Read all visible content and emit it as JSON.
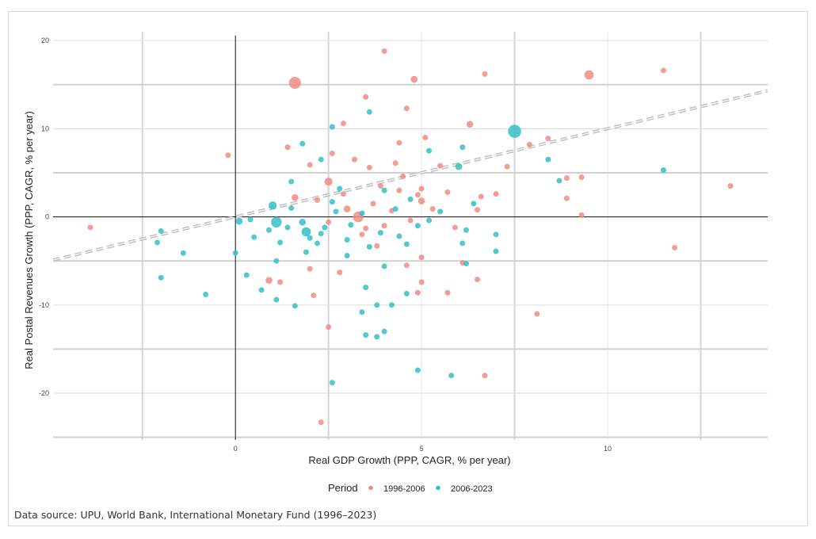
{
  "caption": "Data source: UPU, World Bank, International Monetary Fund (1996–2023)",
  "chart_data": {
    "type": "scatter",
    "title": "",
    "xlabel": "Real GDP Growth (PPP, CAGR, % per year)",
    "ylabel": "Real Postal Revenues Growth (PPP, CAGR, % per year)",
    "xlim": [
      -4.9,
      14.3
    ],
    "ylim": [
      -25.3,
      21.0
    ],
    "x_ticks": [
      0,
      5,
      10
    ],
    "y_ticks": [
      -20,
      -10,
      0,
      10,
      20
    ],
    "grid": true,
    "legend": {
      "title": "Period",
      "position": "bottom"
    },
    "reference_line": {
      "style": "dashed",
      "slope": 1,
      "intercept": 0
    },
    "series": [
      {
        "name": "1996-2006",
        "color": "#F08C84",
        "points": [
          {
            "x": -3.9,
            "y": -1.2,
            "s": 3
          },
          {
            "x": -0.2,
            "y": 7.0,
            "s": 3
          },
          {
            "x": 1.6,
            "y": 15.2,
            "s": 8
          },
          {
            "x": 4.0,
            "y": 18.8,
            "s": 3
          },
          {
            "x": 4.8,
            "y": 15.6,
            "s": 4
          },
          {
            "x": 6.7,
            "y": 16.2,
            "s": 3
          },
          {
            "x": 9.5,
            "y": 16.1,
            "s": 6
          },
          {
            "x": 11.5,
            "y": 16.6,
            "s": 3
          },
          {
            "x": 3.5,
            "y": 13.6,
            "s": 3
          },
          {
            "x": 4.6,
            "y": 12.3,
            "s": 3
          },
          {
            "x": 2.9,
            "y": 10.6,
            "s": 3
          },
          {
            "x": 6.3,
            "y": 10.5,
            "s": 4
          },
          {
            "x": 5.1,
            "y": 9.0,
            "s": 3
          },
          {
            "x": 8.4,
            "y": 8.9,
            "s": 3
          },
          {
            "x": 1.4,
            "y": 7.9,
            "s": 3
          },
          {
            "x": 2.6,
            "y": 7.2,
            "s": 3
          },
          {
            "x": 4.4,
            "y": 8.4,
            "s": 3
          },
          {
            "x": 3.2,
            "y": 6.5,
            "s": 3
          },
          {
            "x": 7.3,
            "y": 5.7,
            "s": 3
          },
          {
            "x": 8.9,
            "y": 4.4,
            "s": 3
          },
          {
            "x": 9.3,
            "y": 4.5,
            "s": 3
          },
          {
            "x": 13.3,
            "y": 3.5,
            "s": 3
          },
          {
            "x": 2.5,
            "y": 4.0,
            "s": 5
          },
          {
            "x": 3.9,
            "y": 3.5,
            "s": 3
          },
          {
            "x": 4.5,
            "y": 4.6,
            "s": 3
          },
          {
            "x": 5.0,
            "y": 3.2,
            "s": 3
          },
          {
            "x": 5.7,
            "y": 2.8,
            "s": 3
          },
          {
            "x": 6.6,
            "y": 2.3,
            "s": 3
          },
          {
            "x": 7.0,
            "y": 2.6,
            "s": 3
          },
          {
            "x": 8.9,
            "y": 2.1,
            "s": 3
          },
          {
            "x": 1.6,
            "y": 2.2,
            "s": 4
          },
          {
            "x": 2.2,
            "y": 1.9,
            "s": 3
          },
          {
            "x": 3.0,
            "y": 0.9,
            "s": 4
          },
          {
            "x": 3.7,
            "y": 1.5,
            "s": 3
          },
          {
            "x": 4.2,
            "y": 0.7,
            "s": 3
          },
          {
            "x": 5.0,
            "y": 1.8,
            "s": 4
          },
          {
            "x": 5.3,
            "y": 0.9,
            "s": 3
          },
          {
            "x": 6.5,
            "y": 0.8,
            "s": 3
          },
          {
            "x": 9.3,
            "y": 0.2,
            "s": 3
          },
          {
            "x": 3.3,
            "y": 0.0,
            "s": 7
          },
          {
            "x": 2.5,
            "y": -0.6,
            "s": 3
          },
          {
            "x": 4.0,
            "y": -1.0,
            "s": 3
          },
          {
            "x": 4.7,
            "y": -0.4,
            "s": 3
          },
          {
            "x": 5.9,
            "y": -1.2,
            "s": 3
          },
          {
            "x": 3.4,
            "y": -2.0,
            "s": 3
          },
          {
            "x": 3.8,
            "y": -3.3,
            "s": 3
          },
          {
            "x": 5.0,
            "y": -4.6,
            "s": 3
          },
          {
            "x": 6.1,
            "y": -5.2,
            "s": 3
          },
          {
            "x": 11.8,
            "y": -3.5,
            "s": 3
          },
          {
            "x": 2.0,
            "y": -5.9,
            "s": 3
          },
          {
            "x": 2.8,
            "y": -6.3,
            "s": 3
          },
          {
            "x": 4.6,
            "y": -5.5,
            "s": 3
          },
          {
            "x": 0.9,
            "y": -7.2,
            "s": 4
          },
          {
            "x": 1.2,
            "y": -7.4,
            "s": 3
          },
          {
            "x": 5.0,
            "y": -7.4,
            "s": 3
          },
          {
            "x": 6.5,
            "y": -7.1,
            "s": 3
          },
          {
            "x": 2.1,
            "y": -8.9,
            "s": 3
          },
          {
            "x": 4.9,
            "y": -8.6,
            "s": 3
          },
          {
            "x": 5.7,
            "y": -8.6,
            "s": 3
          },
          {
            "x": 8.1,
            "y": -11.0,
            "s": 3
          },
          {
            "x": 2.5,
            "y": -12.5,
            "s": 3
          },
          {
            "x": 6.7,
            "y": -18.0,
            "s": 3
          },
          {
            "x": 2.3,
            "y": -23.3,
            "s": 3
          },
          {
            "x": 3.6,
            "y": 5.6,
            "s": 3
          },
          {
            "x": 4.3,
            "y": 6.1,
            "s": 3
          },
          {
            "x": 5.5,
            "y": 5.8,
            "s": 3
          },
          {
            "x": 7.9,
            "y": 8.2,
            "s": 3
          },
          {
            "x": 2.0,
            "y": 5.9,
            "s": 3
          },
          {
            "x": 4.9,
            "y": 2.5,
            "s": 3
          },
          {
            "x": 2.9,
            "y": 2.6,
            "s": 3
          },
          {
            "x": 3.5,
            "y": -1.3,
            "s": 3
          },
          {
            "x": 4.4,
            "y": 3.0,
            "s": 3
          }
        ]
      },
      {
        "name": "2006-2023",
        "color": "#34BFC6",
        "points": [
          {
            "x": 7.5,
            "y": 9.7,
            "s": 9
          },
          {
            "x": 1.0,
            "y": 1.3,
            "s": 5
          },
          {
            "x": 1.1,
            "y": -0.6,
            "s": 7
          },
          {
            "x": 1.9,
            "y": -1.7,
            "s": 6
          },
          {
            "x": 0.1,
            "y": -0.5,
            "s": 4
          },
          {
            "x": 0.4,
            "y": -0.3,
            "s": 3
          },
          {
            "x": -2.0,
            "y": -6.9,
            "s": 3
          },
          {
            "x": -2.0,
            "y": -1.6,
            "s": 3
          },
          {
            "x": -2.1,
            "y": -2.9,
            "s": 3
          },
          {
            "x": -1.4,
            "y": -4.1,
            "s": 3
          },
          {
            "x": -0.8,
            "y": -8.8,
            "s": 3
          },
          {
            "x": 0.0,
            "y": -4.1,
            "s": 3
          },
          {
            "x": 11.5,
            "y": 5.3,
            "s": 3
          },
          {
            "x": 8.4,
            "y": 6.5,
            "s": 3
          },
          {
            "x": 6.0,
            "y": 5.7,
            "s": 4
          },
          {
            "x": 6.1,
            "y": 7.9,
            "s": 3
          },
          {
            "x": 5.2,
            "y": 7.5,
            "s": 3
          },
          {
            "x": 3.6,
            "y": 11.9,
            "s": 3
          },
          {
            "x": 2.6,
            "y": 10.2,
            "s": 3
          },
          {
            "x": 1.8,
            "y": 8.3,
            "s": 3
          },
          {
            "x": 2.3,
            "y": 6.5,
            "s": 3
          },
          {
            "x": 1.5,
            "y": 4.0,
            "s": 3
          },
          {
            "x": 2.8,
            "y": 3.2,
            "s": 3
          },
          {
            "x": 4.0,
            "y": 3.0,
            "s": 3
          },
          {
            "x": 4.7,
            "y": 2.0,
            "s": 3
          },
          {
            "x": 6.4,
            "y": 1.5,
            "s": 3
          },
          {
            "x": 8.7,
            "y": 4.1,
            "s": 3
          },
          {
            "x": 1.5,
            "y": 1.0,
            "s": 3
          },
          {
            "x": 2.7,
            "y": 0.6,
            "s": 3
          },
          {
            "x": 3.4,
            "y": 0.4,
            "s": 3
          },
          {
            "x": 4.3,
            "y": 0.9,
            "s": 3
          },
          {
            "x": 5.5,
            "y": 0.6,
            "s": 3
          },
          {
            "x": 1.8,
            "y": -0.6,
            "s": 4
          },
          {
            "x": 2.4,
            "y": -1.2,
            "s": 3
          },
          {
            "x": 3.1,
            "y": -0.9,
            "s": 3
          },
          {
            "x": 3.9,
            "y": -1.8,
            "s": 3
          },
          {
            "x": 4.9,
            "y": -1.0,
            "s": 3
          },
          {
            "x": 6.2,
            "y": -1.5,
            "s": 3
          },
          {
            "x": 7.0,
            "y": -2.0,
            "s": 3
          },
          {
            "x": 0.5,
            "y": -2.3,
            "s": 3
          },
          {
            "x": 1.2,
            "y": -2.9,
            "s": 3
          },
          {
            "x": 2.2,
            "y": -3.0,
            "s": 3
          },
          {
            "x": 3.6,
            "y": -3.4,
            "s": 3
          },
          {
            "x": 4.6,
            "y": -3.1,
            "s": 3
          },
          {
            "x": 6.1,
            "y": -3.0,
            "s": 3
          },
          {
            "x": 7.0,
            "y": -3.9,
            "s": 3
          },
          {
            "x": 0.3,
            "y": -6.6,
            "s": 3
          },
          {
            "x": 1.1,
            "y": -5.0,
            "s": 3
          },
          {
            "x": 1.9,
            "y": -4.0,
            "s": 3
          },
          {
            "x": 3.0,
            "y": -4.4,
            "s": 3
          },
          {
            "x": 4.0,
            "y": -5.6,
            "s": 3
          },
          {
            "x": 6.2,
            "y": -5.3,
            "s": 3
          },
          {
            "x": 0.7,
            "y": -8.3,
            "s": 3
          },
          {
            "x": 1.6,
            "y": -10.1,
            "s": 3
          },
          {
            "x": 1.1,
            "y": -9.4,
            "s": 3
          },
          {
            "x": 3.5,
            "y": -8.0,
            "s": 3
          },
          {
            "x": 4.6,
            "y": -8.7,
            "s": 3
          },
          {
            "x": 3.4,
            "y": -10.8,
            "s": 3
          },
          {
            "x": 3.8,
            "y": -10.0,
            "s": 3
          },
          {
            "x": 4.2,
            "y": -10.0,
            "s": 3
          },
          {
            "x": 3.5,
            "y": -13.4,
            "s": 3
          },
          {
            "x": 3.8,
            "y": -13.6,
            "s": 3
          },
          {
            "x": 4.0,
            "y": -13.0,
            "s": 3
          },
          {
            "x": 2.6,
            "y": -18.8,
            "s": 3
          },
          {
            "x": 4.9,
            "y": -17.4,
            "s": 3
          },
          {
            "x": 5.8,
            "y": -18.0,
            "s": 3
          },
          {
            "x": 2.3,
            "y": -1.9,
            "s": 3
          },
          {
            "x": 1.4,
            "y": -1.2,
            "s": 3
          },
          {
            "x": 0.9,
            "y": -1.5,
            "s": 3
          },
          {
            "x": 3.0,
            "y": -2.6,
            "s": 3
          },
          {
            "x": 4.4,
            "y": -2.2,
            "s": 3
          },
          {
            "x": 5.2,
            "y": -0.4,
            "s": 3
          },
          {
            "x": 2.0,
            "y": -2.4,
            "s": 3
          },
          {
            "x": 2.6,
            "y": 1.7,
            "s": 3
          }
        ]
      }
    ]
  }
}
